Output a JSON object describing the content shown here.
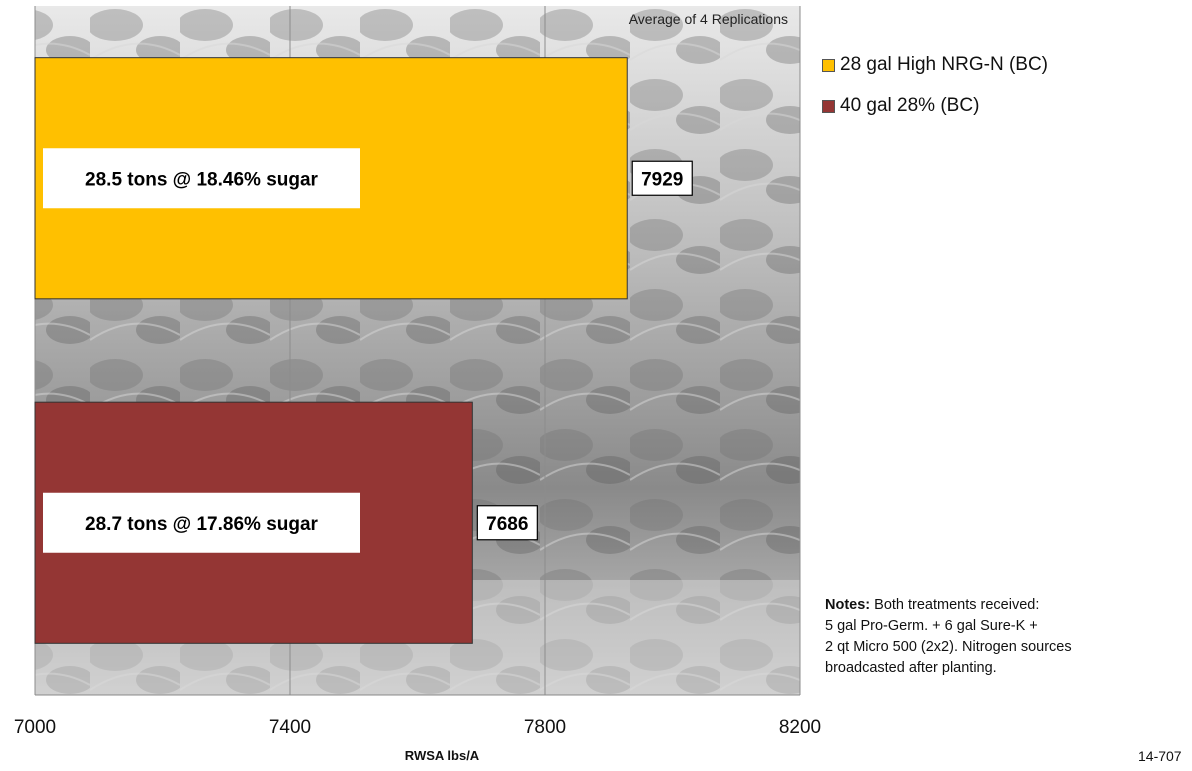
{
  "chart_data": {
    "type": "bar",
    "orientation": "horizontal",
    "annotation": "Average of 4 Replications",
    "xlabel": "RWSA lbs/A",
    "ylabel": "",
    "xlim": [
      7000,
      8200
    ],
    "xticks": [
      7000,
      7400,
      7800,
      8200
    ],
    "grid": true,
    "legend_position": "right",
    "series": [
      {
        "name": "28 gal High NRG-N (BC)",
        "value": 7929,
        "value_label": "7929",
        "color": "#FFC000",
        "note": "28.5 tons @ 18.46% sugar"
      },
      {
        "name": "40 gal 28% (BC)",
        "value": 7686,
        "value_label": "7686",
        "color": "#943634",
        "note": "28.7 tons @ 17.86% sugar"
      }
    ]
  },
  "notes": {
    "label": "Notes:",
    "text": " Both treatments received:",
    "lines": [
      "5 gal Pro-Germ. + 6 gal Sure-K +",
      "2 qt Micro 500 (2x2).  Nitrogen sources",
      "broadcasted after planting."
    ]
  },
  "footer_id": "14-707"
}
